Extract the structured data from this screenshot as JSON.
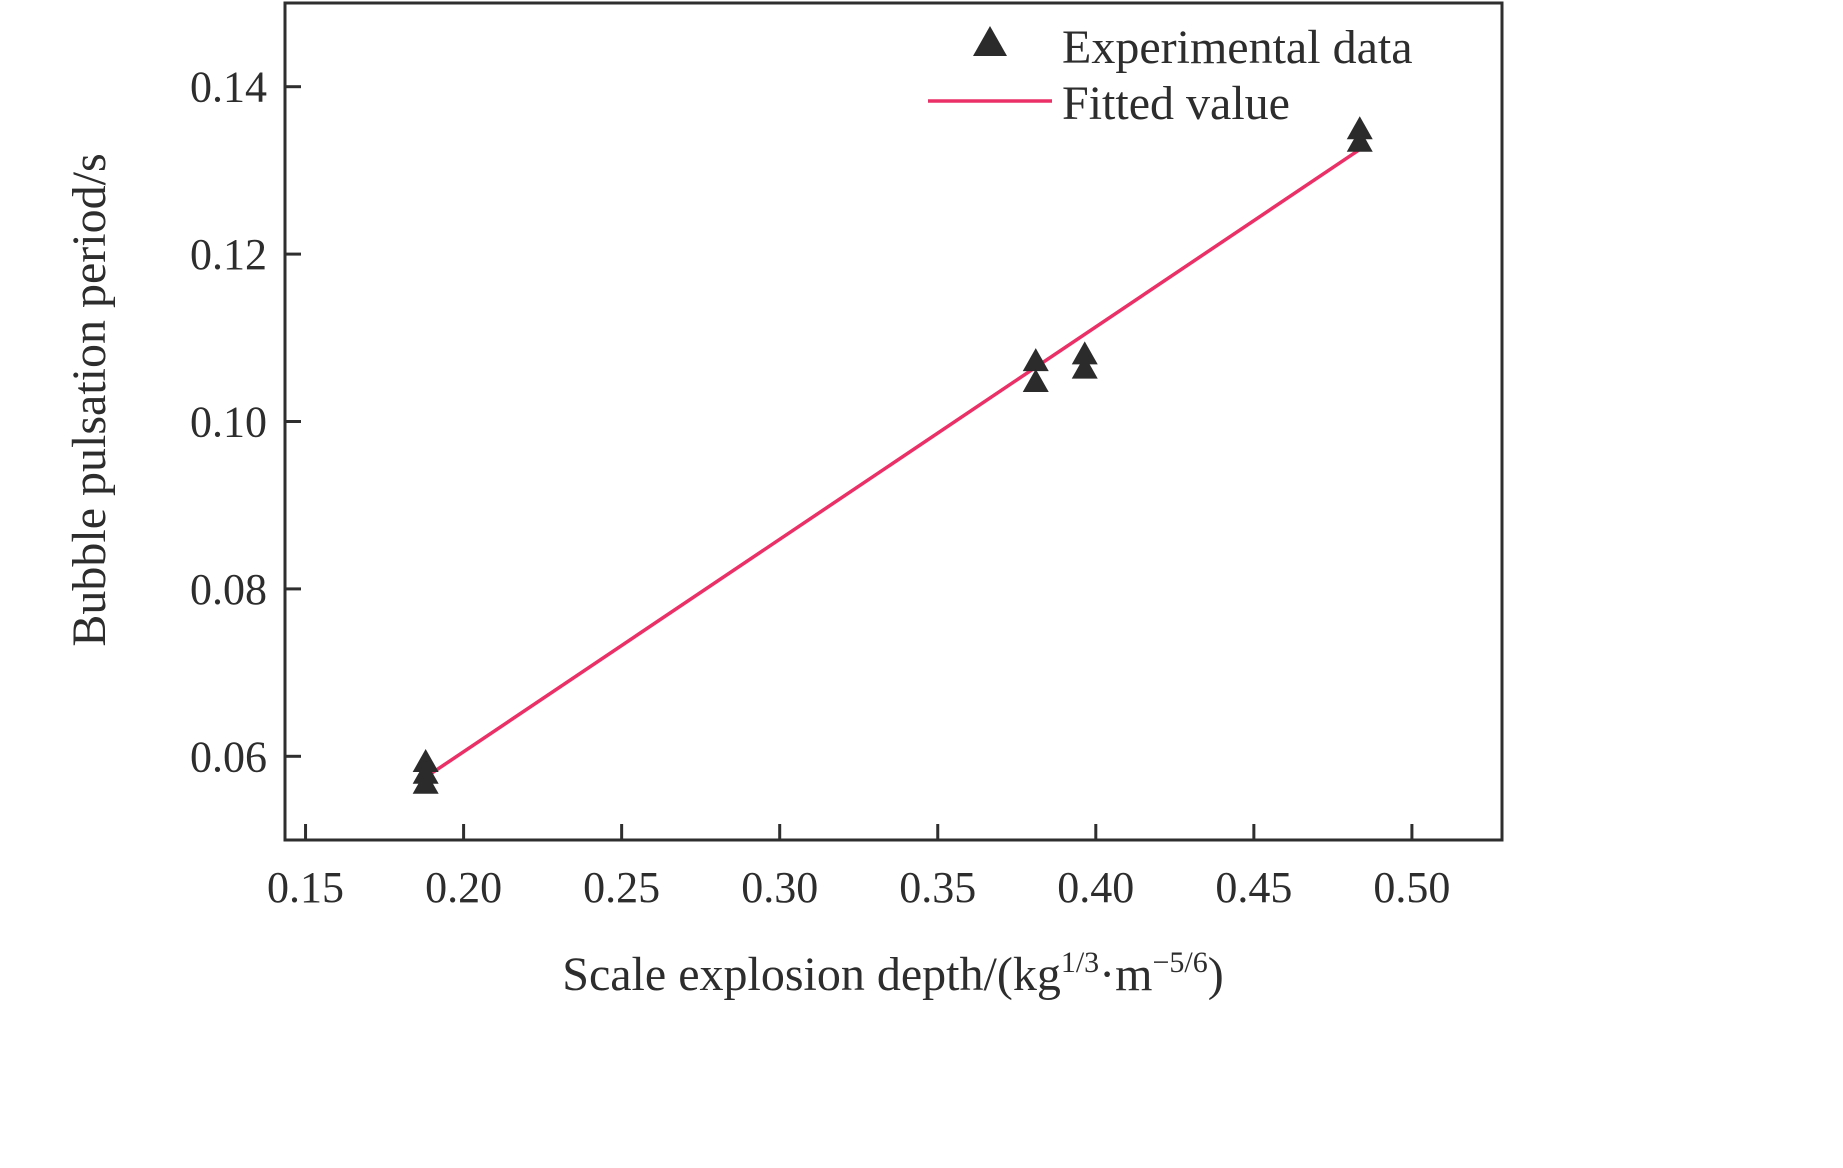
{
  "chart_data": {
    "type": "scatter",
    "title": "",
    "xlabel_parts": {
      "pre": "Scale explosion depth/(kg",
      "sup1": "1/3",
      "mid": "·m",
      "sup2": "−5/6",
      "post": ")"
    },
    "ylabel": "Bubble pulsation period/s",
    "xlim": [
      0.1435,
      0.5285
    ],
    "ylim": [
      0.05,
      0.15
    ],
    "x_ticks": [
      0.15,
      0.2,
      0.25,
      0.3,
      0.35,
      0.4,
      0.45,
      0.5
    ],
    "y_ticks": [
      0.06,
      0.08,
      0.1,
      0.12,
      0.14
    ],
    "grid": false,
    "frame_color": "#2e2e2e",
    "background": "#ffffff",
    "series": [
      {
        "name": "Experimental data",
        "type": "scatter",
        "marker": "triangle",
        "color": "#2b2b2b",
        "points": [
          [
            0.188,
            0.0592
          ],
          [
            0.188,
            0.0578
          ],
          [
            0.188,
            0.0566
          ],
          [
            0.381,
            0.1071
          ],
          [
            0.381,
            0.1046
          ],
          [
            0.3965,
            0.1079
          ],
          [
            0.3965,
            0.1062
          ],
          [
            0.4835,
            0.1348
          ],
          [
            0.4835,
            0.1333
          ]
        ]
      },
      {
        "name": "Fitted value",
        "type": "line",
        "color": "#ea3067",
        "points": [
          [
            0.188,
            0.0575
          ],
          [
            0.4835,
            0.1325
          ]
        ]
      }
    ],
    "legend": {
      "position": "top-right",
      "entries": [
        "Experimental data",
        "Fitted value"
      ]
    }
  }
}
